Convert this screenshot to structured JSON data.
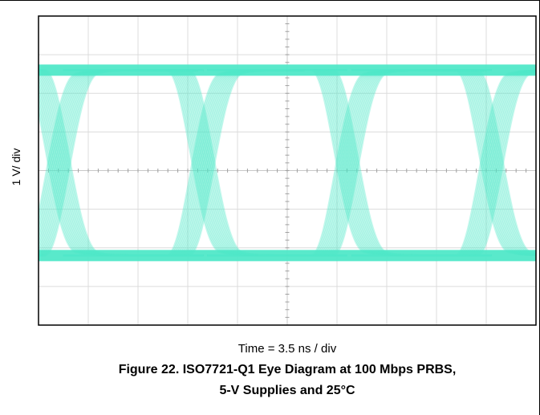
{
  "chart_data": {
    "type": "eye_diagram",
    "title": "Figure 22. ISO7721-Q1 Eye Diagram at 100 Mbps PRBS,",
    "subtitle": "5-V Supplies and 25°C",
    "xlabel": "Time = 3.5 ns / div",
    "ylabel": "1 V/ div",
    "grid": true,
    "x_divisions": 10,
    "y_divisions": 8,
    "data_rate": "100 Mbps",
    "pattern": "PRBS",
    "supply": "5-V",
    "temperature": "25°C",
    "high_level_div": 6.6,
    "low_level_div": 1.8,
    "unit_interval_div": 2.857,
    "transition_centers_div": [
      0.45,
      3.35,
      6.25,
      9.15
    ],
    "trace_color": "#50e8c8"
  }
}
